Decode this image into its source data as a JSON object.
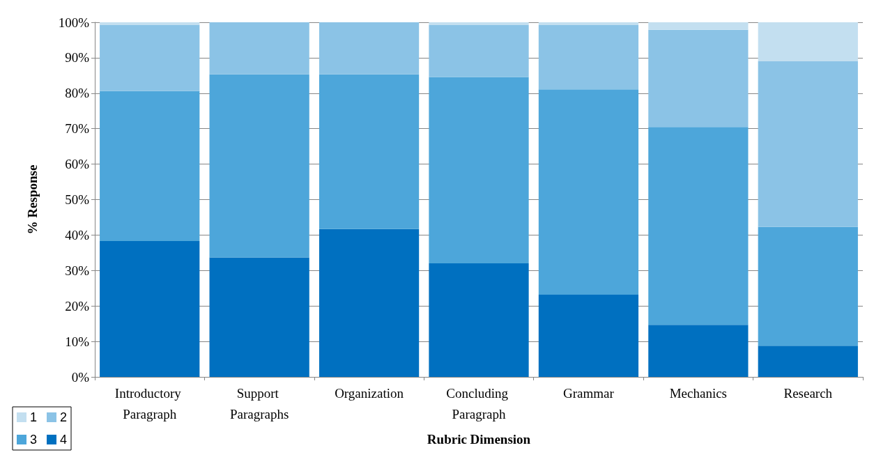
{
  "chart_data": {
    "type": "bar",
    "stacked": true,
    "xlabel": "Rubric Dimension",
    "ylabel": "% Response",
    "categories": [
      "Introductory Paragraph",
      "Support Paragraphs",
      "Organization",
      "Concluding Paragraph",
      "Grammar",
      "Mechanics",
      "Research"
    ],
    "series": [
      {
        "name": "4",
        "color": "#0070c0",
        "values": [
          38.3,
          33.7,
          41.7,
          32.0,
          23.2,
          14.7,
          8.8
        ]
      },
      {
        "name": "3",
        "color": "#4da6da",
        "values": [
          42.3,
          51.6,
          43.6,
          52.6,
          57.9,
          55.8,
          33.5
        ]
      },
      {
        "name": "2",
        "color": "#8bc3e6",
        "values": [
          18.6,
          14.7,
          14.7,
          14.6,
          18.1,
          27.4,
          46.7
        ]
      },
      {
        "name": "1",
        "color": "#c3dff0",
        "values": [
          0.8,
          0,
          0,
          0.8,
          0.8,
          2.1,
          11.0
        ]
      }
    ],
    "ylim": [
      0,
      100
    ],
    "yticks": [
      {
        "value": 0,
        "label": "0%"
      },
      {
        "value": 10,
        "label": "10%"
      },
      {
        "value": 20,
        "label": "20%"
      },
      {
        "value": 30,
        "label": "30%"
      },
      {
        "value": 40,
        "label": "40%"
      },
      {
        "value": 50,
        "label": "50%"
      },
      {
        "value": 60,
        "label": "60%"
      },
      {
        "value": 70,
        "label": "70%"
      },
      {
        "value": 80,
        "label": "80%"
      },
      {
        "value": 90,
        "label": "90%"
      },
      {
        "value": 100,
        "label": "100%"
      }
    ],
    "grid": "y",
    "legend": "bottom left"
  }
}
